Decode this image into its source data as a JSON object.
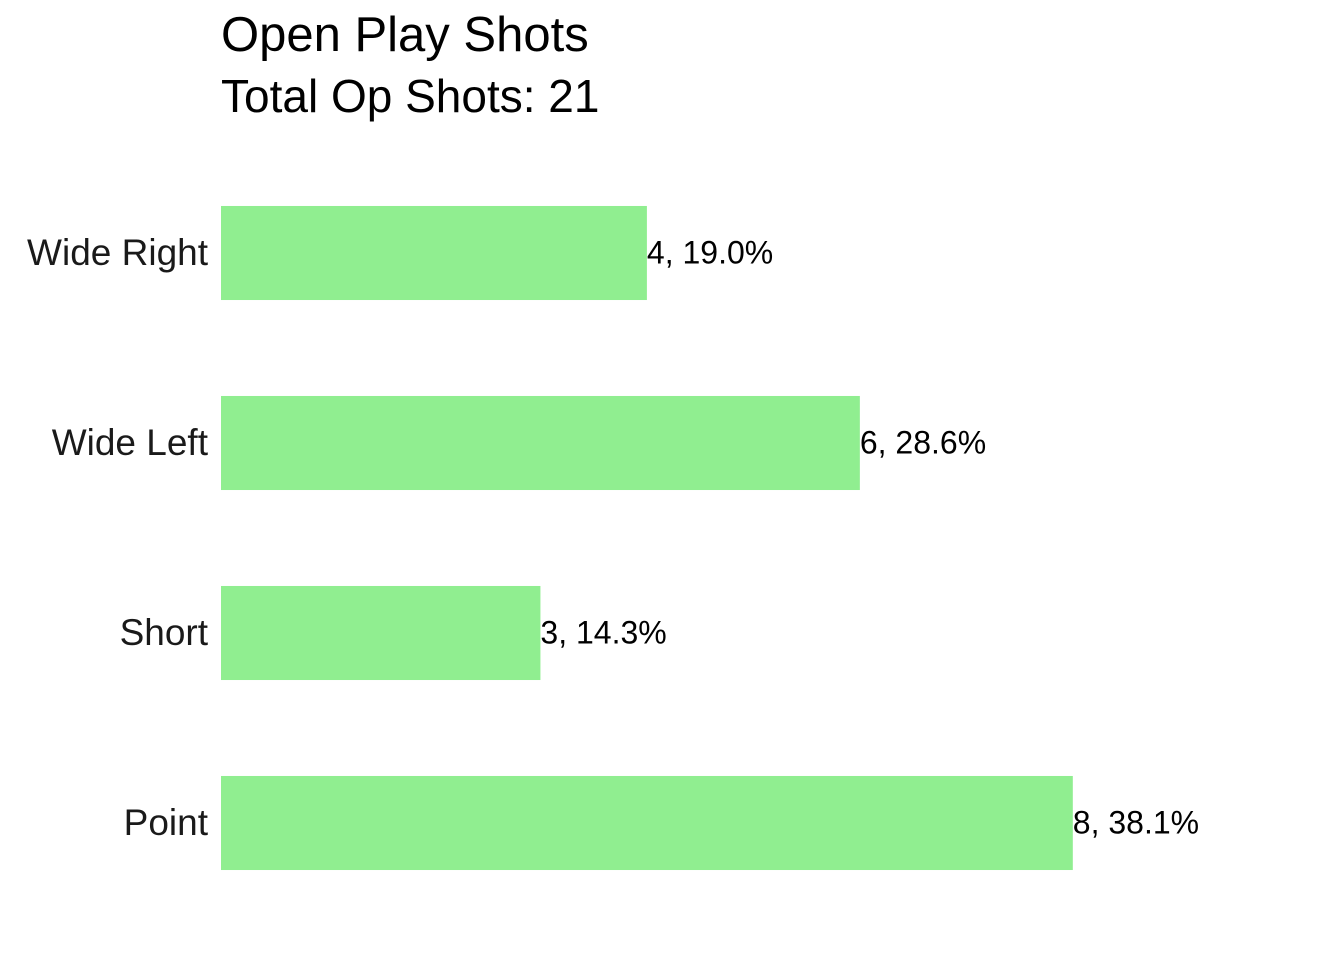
{
  "chart_data": {
    "type": "bar",
    "orientation": "horizontal",
    "title": "Open Play Shots",
    "subtitle": "Total Op Shots: 21",
    "categories": [
      "Wide Right",
      "Wide Left",
      "Short",
      "Point"
    ],
    "values": [
      4,
      6,
      3,
      8
    ],
    "value_labels": [
      "4, 19.0%",
      "6, 28.6%",
      "3, 14.3%",
      "8, 38.1%"
    ],
    "color": "#90ee90",
    "xlim": [
      0,
      10.5
    ]
  }
}
